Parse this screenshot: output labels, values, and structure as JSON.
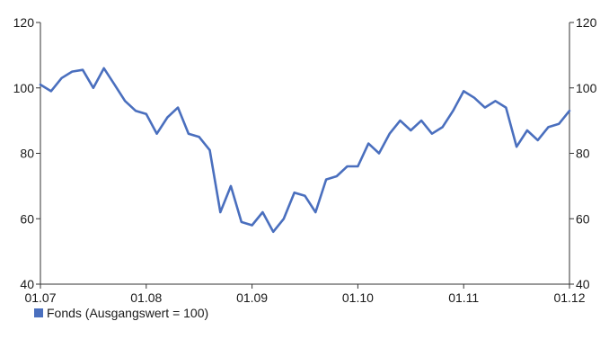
{
  "chart_data": {
    "type": "line",
    "title": "",
    "xlabel": "",
    "ylabel": "",
    "ylim": [
      40,
      120
    ],
    "y_ticks": [
      40,
      60,
      80,
      100,
      120
    ],
    "x_tick_labels": [
      "01.07",
      "01.08",
      "01.09",
      "01.10",
      "01.11",
      "01.12"
    ],
    "grid": false,
    "legend_position": "bottom-left",
    "series": [
      {
        "name": "Fonds (Ausgangswert = 100)",
        "color": "#4a6fbe",
        "x": [
          0,
          0.1,
          0.2,
          0.3,
          0.4,
          0.5,
          0.6,
          0.7,
          0.8,
          0.9,
          1,
          1.1,
          1.2,
          1.3,
          1.4,
          1.5,
          1.6,
          1.7,
          1.8,
          1.9,
          2,
          2.1,
          2.2,
          2.3,
          2.4,
          2.5,
          2.6,
          2.7,
          2.8,
          2.9,
          3,
          3.1,
          3.2,
          3.3,
          3.4,
          3.5,
          3.6,
          3.7,
          3.8,
          3.9,
          4,
          4.1,
          4.2,
          4.3,
          4.4,
          4.5,
          4.6,
          4.7,
          4.8,
          4.9,
          5
        ],
        "values": [
          101,
          99,
          103,
          105,
          105.5,
          100,
          106,
          101,
          96,
          93,
          92,
          86,
          91,
          94,
          86,
          85,
          81,
          62,
          70,
          59,
          58,
          62,
          56,
          60,
          68,
          67,
          62,
          72,
          73,
          76,
          76,
          83,
          80,
          86,
          90,
          87,
          90,
          86,
          88,
          93,
          99,
          97,
          94,
          96,
          94,
          82,
          87,
          84,
          88,
          89,
          93
        ]
      }
    ]
  }
}
